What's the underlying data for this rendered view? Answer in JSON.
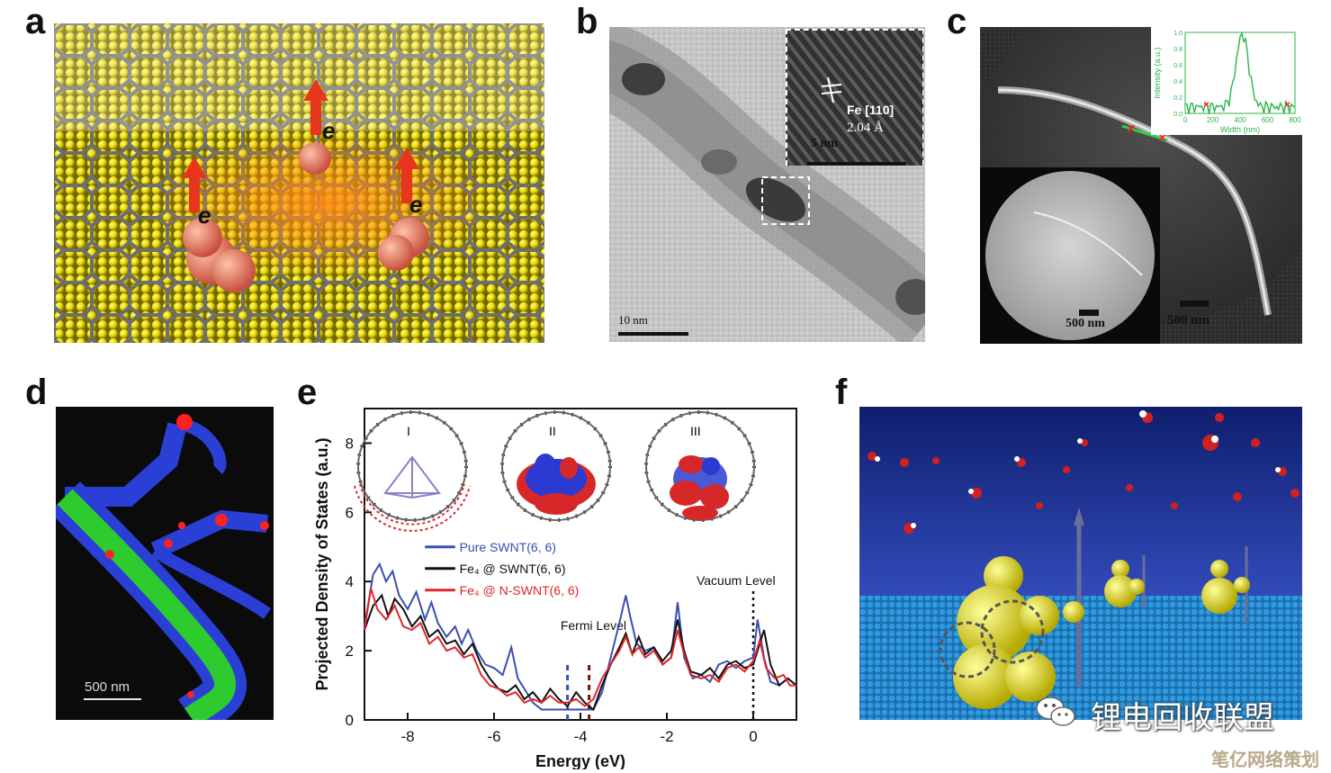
{
  "panels": {
    "a": {
      "label": "a",
      "electron_symbol": "e"
    },
    "b": {
      "label": "b",
      "scale_main": "10 nm",
      "inset_scale": "5 nm",
      "inset_lattice": "Fe [110]",
      "inset_spacing": "2.04 Å"
    },
    "c": {
      "label": "c",
      "scale_left": "500 nm",
      "scale_right": "500 nm",
      "inset_ylabel": "Intensity (a.u.)",
      "inset_xlabel": "Width (nm)",
      "inset_xticks": [
        "0",
        "200",
        "400",
        "600",
        "800"
      ],
      "inset_yticks": [
        "0.0",
        "0.2",
        "0.4",
        "0.6",
        "0.8",
        "1.0"
      ]
    },
    "d": {
      "label": "d",
      "scale": "500 nm"
    },
    "e": {
      "label": "e",
      "vacuum_label": "Vacuum Level",
      "fermi_label": "Fermi Level",
      "structures": [
        "I",
        "II",
        "III"
      ]
    },
    "f": {
      "label": "f"
    }
  },
  "watermark": {
    "text1": "锂电回收联盟",
    "text2": "笔亿网络策划"
  },
  "colors": {
    "pure": "#3a4fb0",
    "fe4": "#111111",
    "nswnt": "#e0262a"
  },
  "chart_data": {
    "type": "line",
    "xlabel": "Energy (eV)",
    "ylabel": "Projected Density of States (a.u.)",
    "xlim": [
      -9,
      1
    ],
    "ylim": [
      0,
      9
    ],
    "xticks": [
      -8,
      -6,
      -4,
      -2,
      0
    ],
    "yticks": [
      0,
      2,
      4,
      6,
      8
    ],
    "annotations": {
      "fermi_pure": -4.3,
      "fermi_fe": -3.8,
      "vacuum": 0
    },
    "series": [
      {
        "name": "Pure SWNT(6, 6)",
        "x": [
          -9,
          -8.8,
          -8.65,
          -8.5,
          -8.35,
          -8.2,
          -8.0,
          -7.8,
          -7.6,
          -7.45,
          -7.3,
          -7.1,
          -6.9,
          -6.75,
          -6.6,
          -6.4,
          -6.2,
          -6.0,
          -5.8,
          -5.6,
          -5.45,
          -5.3,
          -5.1,
          -4.9,
          -4.7,
          -4.5,
          -4.3,
          -4.1,
          -3.9,
          -3.7,
          -3.5,
          -3.3,
          -3.1,
          -2.95,
          -2.85,
          -2.7,
          -2.5,
          -2.3,
          -2.1,
          -1.9,
          -1.75,
          -1.6,
          -1.4,
          -1.2,
          -1.0,
          -0.8,
          -0.6,
          -0.4,
          -0.2,
          0,
          0.1,
          0.25,
          0.4,
          0.6,
          0.8,
          1.0
        ],
        "y": [
          2.7,
          4.2,
          4.5,
          4.0,
          4.3,
          3.6,
          3.2,
          3.7,
          2.9,
          3.4,
          2.8,
          2.4,
          2.7,
          2.2,
          2.6,
          2.0,
          1.6,
          1.5,
          1.3,
          2.1,
          1.2,
          0.9,
          0.5,
          0.3,
          0.3,
          0.3,
          0.3,
          0.3,
          0.3,
          0.3,
          0.8,
          1.8,
          2.8,
          3.6,
          3.0,
          2.2,
          2.0,
          2.1,
          1.6,
          1.8,
          3.4,
          1.8,
          1.2,
          1.3,
          1.1,
          1.6,
          1.7,
          1.5,
          1.7,
          1.8,
          2.9,
          1.8,
          1.1,
          1.0,
          1.2,
          1.0
        ]
      },
      {
        "name": "Fe₄ @ SWNT(6, 6)",
        "x": [
          -9,
          -8.8,
          -8.6,
          -8.45,
          -8.3,
          -8.1,
          -7.9,
          -7.7,
          -7.5,
          -7.3,
          -7.1,
          -6.9,
          -6.7,
          -6.5,
          -6.3,
          -6.1,
          -5.9,
          -5.7,
          -5.5,
          -5.3,
          -5.1,
          -4.9,
          -4.7,
          -4.5,
          -4.3,
          -4.1,
          -3.9,
          -3.7,
          -3.5,
          -3.3,
          -3.1,
          -2.95,
          -2.8,
          -2.65,
          -2.5,
          -2.3,
          -2.1,
          -1.9,
          -1.75,
          -1.6,
          -1.45,
          -1.2,
          -1.0,
          -0.8,
          -0.6,
          -0.4,
          -0.2,
          0,
          0.1,
          0.25,
          0.4,
          0.6,
          0.8,
          1.0
        ],
        "y": [
          2.6,
          3.3,
          3.6,
          3.0,
          3.5,
          3.2,
          2.7,
          3.0,
          2.4,
          2.6,
          2.2,
          2.3,
          1.9,
          2.2,
          1.6,
          1.2,
          0.9,
          0.8,
          1.0,
          0.6,
          0.8,
          0.5,
          0.9,
          0.6,
          0.4,
          0.8,
          0.5,
          0.3,
          1.0,
          1.6,
          2.1,
          2.5,
          1.9,
          2.4,
          1.9,
          2.1,
          1.7,
          2.0,
          2.9,
          2.0,
          1.4,
          1.3,
          1.5,
          1.2,
          1.6,
          1.7,
          1.5,
          1.6,
          2.0,
          2.6,
          1.6,
          1.0,
          1.2,
          1.0
        ]
      },
      {
        "name": "Fe₄ @ N-SWNT(6, 6)",
        "x": [
          -9,
          -8.85,
          -8.7,
          -8.5,
          -8.3,
          -8.1,
          -7.9,
          -7.7,
          -7.5,
          -7.3,
          -7.1,
          -6.9,
          -6.7,
          -6.5,
          -6.3,
          -6.1,
          -5.9,
          -5.7,
          -5.5,
          -5.3,
          -5.1,
          -4.9,
          -4.7,
          -4.5,
          -4.3,
          -4.1,
          -3.9,
          -3.7,
          -3.5,
          -3.3,
          -3.1,
          -2.95,
          -2.8,
          -2.65,
          -2.5,
          -2.3,
          -2.1,
          -1.9,
          -1.75,
          -1.6,
          -1.45,
          -1.2,
          -1.0,
          -0.8,
          -0.6,
          -0.4,
          -0.2,
          0,
          0.15,
          0.3,
          0.5,
          0.7,
          0.85,
          1.0
        ],
        "y": [
          2.6,
          3.8,
          3.2,
          2.9,
          3.3,
          2.7,
          2.6,
          2.8,
          2.2,
          2.4,
          2.0,
          2.1,
          1.8,
          1.9,
          1.3,
          1.0,
          0.9,
          0.7,
          0.8,
          0.5,
          0.6,
          0.5,
          0.7,
          0.5,
          0.5,
          0.6,
          0.4,
          0.6,
          1.2,
          1.6,
          2.0,
          2.4,
          1.9,
          2.1,
          1.8,
          2.0,
          1.6,
          1.8,
          2.6,
          1.9,
          1.3,
          1.2,
          1.3,
          1.1,
          1.5,
          1.6,
          1.4,
          1.7,
          2.3,
          1.5,
          1.2,
          1.3,
          1.0,
          1.0
        ]
      }
    ]
  }
}
